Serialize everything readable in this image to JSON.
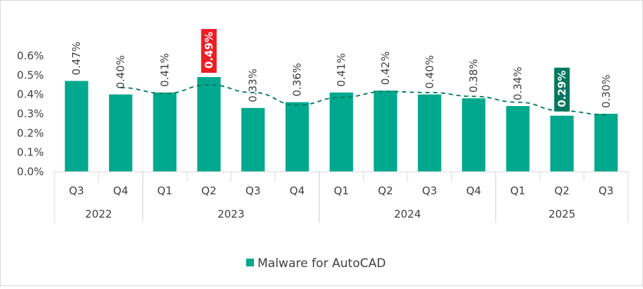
{
  "chart_data": {
    "type": "bar",
    "categories": [
      "Q3",
      "Q4",
      "Q1",
      "Q2",
      "Q3",
      "Q4",
      "Q1",
      "Q2",
      "Q3",
      "Q4",
      "Q1",
      "Q2",
      "Q3"
    ],
    "groups": [
      {
        "label": "2022",
        "start": 0,
        "count": 2
      },
      {
        "label": "2023",
        "start": 2,
        "count": 4
      },
      {
        "label": "2024",
        "start": 6,
        "count": 4
      },
      {
        "label": "2025",
        "start": 10,
        "count": 3
      }
    ],
    "series": [
      {
        "name": "Malware for AutoCAD",
        "values": [
          0.47,
          0.4,
          0.41,
          0.49,
          0.33,
          0.36,
          0.41,
          0.42,
          0.4,
          0.38,
          0.34,
          0.29,
          0.3
        ],
        "labels": [
          "0.47%",
          "0.40%",
          "0.41%",
          "0.49%",
          "0.33%",
          "0.36%",
          "0.41%",
          "0.42%",
          "0.40%",
          "0.38%",
          "0.34%",
          "0.29%",
          "0.30%"
        ]
      }
    ],
    "highlights": [
      {
        "index": 3,
        "color": "#ee1c24"
      },
      {
        "index": 11,
        "color": "#00775f"
      }
    ],
    "trendline": {
      "type": "moving-average",
      "period": 2,
      "style": "dashed"
    },
    "yticks": [
      "0.0%",
      "0.1%",
      "0.2%",
      "0.3%",
      "0.4%",
      "0.5%",
      "0.6%"
    ],
    "ylim": [
      0,
      0.6
    ],
    "title": "",
    "xlabel": "",
    "ylabel": "",
    "grid": false,
    "legend": "bottom",
    "colors": {
      "bar": "#00a88e",
      "trend": "#00775f",
      "axis": "#d9d9d9"
    }
  }
}
